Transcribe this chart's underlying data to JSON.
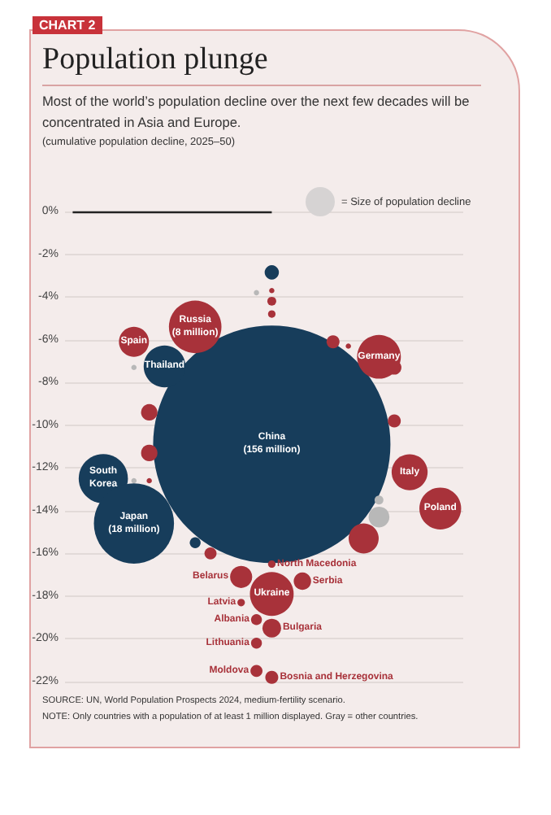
{
  "chart_data": {
    "type": "bubble",
    "title": "Population plunge",
    "subtitle": "Most of the world’s population decline over the next few decades will be concentrated in Asia and Europe.",
    "legend_title": "= Size of population decline",
    "categories": [
      null,
      null,
      null,
      null,
      null,
      null,
      null,
      null,
      null,
      null,
      null,
      null,
      null,
      null,
      null,
      null,
      null,
      null,
      null,
      null,
      null,
      null,
      null,
      null,
      null,
      null
    ],
    "ylim": [
      -22,
      0
    ],
    "yticks": [
      {
        "value": 0,
        "label": "0%"
      },
      {
        "value": -2,
        "label": "-2%"
      },
      {
        "value": -4,
        "label": "-4%"
      },
      {
        "value": -6,
        "label": "-6%"
      },
      {
        "value": -8,
        "label": "-8%"
      },
      {
        "value": -10,
        "label": "-10%"
      },
      {
        "value": -12,
        "label": "-12%"
      },
      {
        "value": -14,
        "label": "-14%"
      },
      {
        "value": -16,
        "label": "-16%"
      },
      {
        "value": -18,
        "label": "-18%"
      },
      {
        "value": -20,
        "label": "-20%"
      },
      {
        "value": -22,
        "label": "-22%"
      }
    ],
    "tick_labels": "y",
    "grid": "y",
    "ref_lines": [
      {
        "axis": "y",
        "value": 0,
        "color": "#222222"
      }
    ],
    "series": [
      {
        "name": "China\n(156 million)",
        "color": "#173d5b",
        "values": [
          null,
          null,
          null,
          null,
          null,
          null,
          null,
          null,
          null,
          null,
          null,
          null,
          null,
          -10.9,
          null,
          null,
          null,
          null,
          null,
          null,
          null,
          null,
          null,
          null,
          null,
          null
        ],
        "sizes": [
          null,
          null,
          null,
          null,
          null,
          null,
          null,
          null,
          null,
          null,
          null,
          null,
          null,
          1,
          null,
          null,
          null,
          null,
          null,
          null,
          null,
          null,
          null,
          null,
          null,
          null
        ]
      },
      {
        "color": "#a8323a",
        "values": [
          null,
          null,
          null,
          null,
          null,
          -9.4,
          null,
          null,
          null,
          -16,
          null,
          null,
          null,
          -3.7,
          null,
          null,
          null,
          -6.1,
          -6.3,
          -15.3,
          null,
          -7.3,
          null,
          null,
          null,
          null
        ],
        "sizes": [
          null,
          null,
          null,
          null,
          null,
          0.0048,
          null,
          null,
          null,
          0.0026,
          null,
          null,
          null,
          0.0005,
          null,
          null,
          null,
          0.003,
          0.0005,
          0.016,
          null,
          0.0036,
          null,
          null,
          null,
          null
        ]
      },
      {
        "color": "#a8323a",
        "values": [
          null,
          null,
          null,
          null,
          null,
          -11.3,
          null,
          null,
          null,
          null,
          null,
          null,
          null,
          -4.2,
          null,
          null,
          null,
          null,
          null,
          null,
          null,
          -9.8,
          null,
          null,
          null,
          null
        ],
        "sizes": [
          null,
          null,
          null,
          null,
          null,
          0.0048,
          null,
          null,
          null,
          null,
          null,
          null,
          null,
          0.0014,
          null,
          null,
          null,
          null,
          null,
          null,
          null,
          0.003,
          null,
          null,
          null,
          null
        ]
      },
      {
        "color": "#a8323a",
        "values": [
          null,
          null,
          null,
          null,
          null,
          -12.6,
          null,
          null,
          null,
          null,
          null,
          null,
          null,
          -4.8,
          null,
          null,
          null,
          null,
          null,
          null,
          null,
          null,
          null,
          null,
          null,
          null
        ],
        "sizes": [
          null,
          null,
          null,
          null,
          null,
          0.0005,
          null,
          null,
          null,
          null,
          null,
          null,
          null,
          0.001,
          null,
          null,
          null,
          null,
          null,
          null,
          null,
          null,
          null,
          null,
          null,
          null
        ]
      },
      {
        "color": "#173d5b",
        "values": [
          null,
          null,
          null,
          null,
          null,
          null,
          null,
          null,
          -15.5,
          null,
          null,
          null,
          null,
          -2.85,
          null,
          null,
          null,
          null,
          null,
          null,
          null,
          null,
          null,
          null,
          null,
          null
        ],
        "sizes": [
          null,
          null,
          null,
          null,
          null,
          null,
          null,
          null,
          0.0021,
          null,
          null,
          null,
          null,
          0.0036,
          null,
          null,
          null,
          null,
          null,
          null,
          null,
          null,
          null,
          null,
          null,
          null
        ]
      },
      {
        "color": "#b8b8b8",
        "values": [
          null,
          null,
          null,
          null,
          -7.3,
          null,
          null,
          null,
          null,
          null,
          null,
          null,
          -3.8,
          null,
          null,
          null,
          null,
          null,
          null,
          null,
          -13.5,
          null,
          null,
          null,
          null,
          null
        ],
        "sizes": [
          null,
          null,
          null,
          null,
          0.0005,
          null,
          null,
          null,
          null,
          null,
          null,
          null,
          0.0005,
          null,
          null,
          null,
          null,
          null,
          null,
          null,
          0.0014,
          null,
          null,
          null,
          null,
          null
        ]
      },
      {
        "color": "#b8b8b8",
        "values": [
          null,
          null,
          null,
          null,
          -12.6,
          null,
          null,
          null,
          null,
          null,
          null,
          null,
          null,
          null,
          null,
          null,
          null,
          null,
          null,
          null,
          -14.3,
          null,
          null,
          null,
          null,
          null
        ],
        "sizes": [
          null,
          null,
          null,
          null,
          0.0005,
          null,
          null,
          null,
          null,
          null,
          null,
          null,
          null,
          null,
          null,
          null,
          null,
          null,
          null,
          null,
          0.0077,
          null,
          null,
          null,
          null,
          null
        ]
      },
      {
        "name": "South\nKorea",
        "color": "#173d5b",
        "values": [
          null,
          null,
          -12.5,
          null,
          null,
          null,
          null,
          null,
          null,
          null,
          null,
          null,
          null,
          null,
          null,
          null,
          null,
          null,
          null,
          null,
          null,
          null,
          null,
          null,
          null,
          null
        ],
        "sizes": [
          null,
          null,
          0.043,
          null,
          null,
          null,
          null,
          null,
          null,
          null,
          null,
          null,
          null,
          null,
          null,
          null,
          null,
          null,
          null,
          null,
          null,
          null,
          null,
          null,
          null,
          null
        ]
      },
      {
        "name": "Japan\n(18 million)",
        "color": "#173d5b",
        "values": [
          null,
          null,
          null,
          null,
          -14.6,
          null,
          null,
          null,
          null,
          null,
          null,
          null,
          null,
          null,
          null,
          null,
          null,
          null,
          null,
          null,
          null,
          null,
          null,
          null,
          null,
          null
        ],
        "sizes": [
          null,
          null,
          null,
          null,
          0.114,
          null,
          null,
          null,
          null,
          null,
          null,
          null,
          null,
          null,
          null,
          null,
          null,
          null,
          null,
          null,
          null,
          null,
          null,
          null,
          null,
          null
        ]
      },
      {
        "name": "Thailand",
        "color": "#173d5b",
        "values": [
          null,
          null,
          null,
          null,
          null,
          null,
          -7.25,
          null,
          null,
          null,
          null,
          null,
          null,
          null,
          null,
          null,
          null,
          null,
          null,
          null,
          null,
          null,
          null,
          null,
          null,
          null
        ],
        "sizes": [
          null,
          null,
          null,
          null,
          null,
          null,
          0.031,
          null,
          null,
          null,
          null,
          null,
          null,
          null,
          null,
          null,
          null,
          null,
          null,
          null,
          null,
          null,
          null,
          null,
          null,
          null
        ]
      },
      {
        "name": "Spain",
        "color": "#a8323a",
        "values": [
          null,
          null,
          null,
          null,
          -6.1,
          null,
          null,
          null,
          null,
          null,
          null,
          null,
          null,
          null,
          null,
          null,
          null,
          null,
          null,
          null,
          null,
          null,
          null,
          null,
          null,
          null
        ],
        "sizes": [
          null,
          null,
          null,
          null,
          0.016,
          null,
          null,
          null,
          null,
          null,
          null,
          null,
          null,
          null,
          null,
          null,
          null,
          null,
          null,
          null,
          null,
          null,
          null,
          null,
          null,
          null
        ]
      },
      {
        "name": "Russia\n(8 million)",
        "color": "#a8323a",
        "values": [
          null,
          null,
          null,
          null,
          null,
          null,
          null,
          null,
          -5.4,
          null,
          null,
          null,
          null,
          null,
          null,
          null,
          null,
          null,
          null,
          null,
          null,
          null,
          null,
          null,
          null,
          null
        ],
        "sizes": [
          null,
          null,
          null,
          null,
          null,
          null,
          null,
          null,
          0.049,
          null,
          null,
          null,
          null,
          null,
          null,
          null,
          null,
          null,
          null,
          null,
          null,
          null,
          null,
          null,
          null,
          null
        ]
      },
      {
        "name": "Germany",
        "color": "#a8323a",
        "values": [
          null,
          null,
          null,
          null,
          null,
          null,
          null,
          null,
          null,
          null,
          null,
          null,
          null,
          null,
          null,
          null,
          null,
          null,
          null,
          null,
          -6.8,
          null,
          null,
          null,
          null,
          null
        ],
        "sizes": [
          null,
          null,
          null,
          null,
          null,
          null,
          null,
          null,
          null,
          null,
          null,
          null,
          null,
          null,
          null,
          null,
          null,
          null,
          null,
          null,
          0.034,
          null,
          null,
          null,
          null,
          null
        ]
      },
      {
        "name": "Italy",
        "color": "#a8323a",
        "values": [
          null,
          null,
          null,
          null,
          null,
          null,
          null,
          null,
          null,
          null,
          null,
          null,
          null,
          null,
          null,
          null,
          null,
          null,
          null,
          null,
          null,
          null,
          -12.2,
          null,
          null,
          null
        ],
        "sizes": [
          null,
          null,
          null,
          null,
          null,
          null,
          null,
          null,
          null,
          null,
          null,
          null,
          null,
          null,
          null,
          null,
          null,
          null,
          null,
          null,
          null,
          null,
          0.023,
          null,
          null,
          null
        ]
      },
      {
        "name": "Poland",
        "color": "#a8323a",
        "values": [
          null,
          null,
          null,
          null,
          null,
          null,
          null,
          null,
          null,
          null,
          null,
          null,
          null,
          null,
          null,
          null,
          null,
          null,
          null,
          null,
          null,
          null,
          null,
          null,
          -13.9,
          null
        ],
        "sizes": [
          null,
          null,
          null,
          null,
          null,
          null,
          null,
          null,
          null,
          null,
          null,
          null,
          null,
          null,
          null,
          null,
          null,
          null,
          null,
          null,
          null,
          null,
          null,
          null,
          0.031,
          null
        ]
      },
      {
        "name": "North Macedonia",
        "color": "#a8323a",
        "values": [
          null,
          null,
          null,
          null,
          null,
          null,
          null,
          null,
          null,
          null,
          null,
          null,
          null,
          -16.5,
          null,
          null,
          null,
          null,
          null,
          null,
          null,
          null,
          null,
          null,
          null,
          null
        ],
        "sizes": [
          null,
          null,
          null,
          null,
          null,
          null,
          null,
          null,
          null,
          null,
          null,
          null,
          null,
          0.001,
          null,
          null,
          null,
          null,
          null,
          null,
          null,
          null,
          null,
          null,
          null,
          null
        ]
      },
      {
        "name": "Belarus",
        "color": "#a8323a",
        "values": [
          null,
          null,
          null,
          null,
          null,
          null,
          null,
          null,
          null,
          null,
          null,
          -17.1,
          null,
          null,
          null,
          null,
          null,
          null,
          null,
          null,
          null,
          null,
          null,
          null,
          null,
          null
        ],
        "sizes": [
          null,
          null,
          null,
          null,
          null,
          null,
          null,
          null,
          null,
          null,
          null,
          0.0087,
          null,
          null,
          null,
          null,
          null,
          null,
          null,
          null,
          null,
          null,
          null,
          null,
          null,
          null
        ]
      },
      {
        "name": "Serbia",
        "color": "#a8323a",
        "values": [
          null,
          null,
          null,
          null,
          null,
          null,
          null,
          null,
          null,
          null,
          null,
          null,
          null,
          null,
          null,
          -17.3,
          null,
          null,
          null,
          null,
          null,
          null,
          null,
          null,
          null,
          null
        ],
        "sizes": [
          null,
          null,
          null,
          null,
          null,
          null,
          null,
          null,
          null,
          null,
          null,
          null,
          null,
          null,
          null,
          0.0054,
          null,
          null,
          null,
          null,
          null,
          null,
          null,
          null,
          null,
          null
        ]
      },
      {
        "name": "Ukraine",
        "color": "#a8323a",
        "values": [
          null,
          null,
          null,
          null,
          null,
          null,
          null,
          null,
          null,
          null,
          null,
          null,
          null,
          -17.9,
          null,
          null,
          null,
          null,
          null,
          null,
          null,
          null,
          null,
          null,
          null,
          null
        ],
        "sizes": [
          null,
          null,
          null,
          null,
          null,
          null,
          null,
          null,
          null,
          null,
          null,
          null,
          null,
          0.034,
          null,
          null,
          null,
          null,
          null,
          null,
          null,
          null,
          null,
          null,
          null,
          null
        ]
      },
      {
        "name": "Latvia",
        "color": "#a8323a",
        "values": [
          null,
          null,
          null,
          null,
          null,
          null,
          null,
          null,
          null,
          null,
          null,
          -18.3,
          null,
          null,
          null,
          null,
          null,
          null,
          null,
          null,
          null,
          null,
          null,
          null,
          null,
          null
        ],
        "sizes": [
          null,
          null,
          null,
          null,
          null,
          null,
          null,
          null,
          null,
          null,
          null,
          0.001,
          null,
          null,
          null,
          null,
          null,
          null,
          null,
          null,
          null,
          null,
          null,
          null,
          null,
          null
        ]
      },
      {
        "name": "Albania",
        "color": "#a8323a",
        "values": [
          null,
          null,
          null,
          null,
          null,
          null,
          null,
          null,
          null,
          null,
          null,
          null,
          -19.1,
          null,
          null,
          null,
          null,
          null,
          null,
          null,
          null,
          null,
          null,
          null,
          null,
          null
        ],
        "sizes": [
          null,
          null,
          null,
          null,
          null,
          null,
          null,
          null,
          null,
          null,
          null,
          null,
          0.0021,
          null,
          null,
          null,
          null,
          null,
          null,
          null,
          null,
          null,
          null,
          null,
          null,
          null
        ]
      },
      {
        "name": "Bulgaria",
        "color": "#a8323a",
        "values": [
          null,
          null,
          null,
          null,
          null,
          null,
          null,
          null,
          null,
          null,
          null,
          null,
          null,
          -19.5,
          null,
          null,
          null,
          null,
          null,
          null,
          null,
          null,
          null,
          null,
          null,
          null
        ],
        "sizes": [
          null,
          null,
          null,
          null,
          null,
          null,
          null,
          null,
          null,
          null,
          null,
          null,
          null,
          0.0062,
          null,
          null,
          null,
          null,
          null,
          null,
          null,
          null,
          null,
          null,
          null,
          null
        ]
      },
      {
        "name": "Lithuania",
        "color": "#a8323a",
        "values": [
          null,
          null,
          null,
          null,
          null,
          null,
          null,
          null,
          null,
          null,
          null,
          null,
          -20.2,
          null,
          null,
          null,
          null,
          null,
          null,
          null,
          null,
          null,
          null,
          null,
          null,
          null
        ],
        "sizes": [
          null,
          null,
          null,
          null,
          null,
          null,
          null,
          null,
          null,
          null,
          null,
          null,
          0.0021,
          null,
          null,
          null,
          null,
          null,
          null,
          null,
          null,
          null,
          null,
          null,
          null,
          null
        ]
      },
      {
        "name": "Moldova",
        "color": "#a8323a",
        "values": [
          null,
          null,
          null,
          null,
          null,
          null,
          null,
          null,
          null,
          null,
          null,
          null,
          -21.5,
          null,
          null,
          null,
          null,
          null,
          null,
          null,
          null,
          null,
          null,
          null,
          null,
          null
        ],
        "sizes": [
          null,
          null,
          null,
          null,
          null,
          null,
          null,
          null,
          null,
          null,
          null,
          null,
          0.0026,
          null,
          null,
          null,
          null,
          null,
          null,
          null,
          null,
          null,
          null,
          null,
          null,
          null
        ]
      },
      {
        "name": "Bosnia and Herzegovina",
        "color": "#a8323a",
        "values": [
          null,
          null,
          null,
          null,
          null,
          null,
          null,
          null,
          null,
          null,
          null,
          null,
          null,
          -21.8,
          null,
          null,
          null,
          null,
          null,
          null,
          null,
          null,
          null,
          null,
          null,
          null
        ],
        "sizes": [
          null,
          null,
          null,
          null,
          null,
          null,
          null,
          null,
          null,
          null,
          null,
          null,
          null,
          0.003,
          null,
          null,
          null,
          null,
          null,
          null,
          null,
          null,
          null,
          null,
          null,
          null
        ]
      }
    ],
    "annotations": [
      "CHART 2",
      "(cumulative population decline, 2025–50)",
      "SOURCE: UN, World Population Prospects 2024, medium-fertility scenario.",
      "NOTE: Only countries with a population of at least 1 million displayed. Gray = other countries."
    ]
  }
}
